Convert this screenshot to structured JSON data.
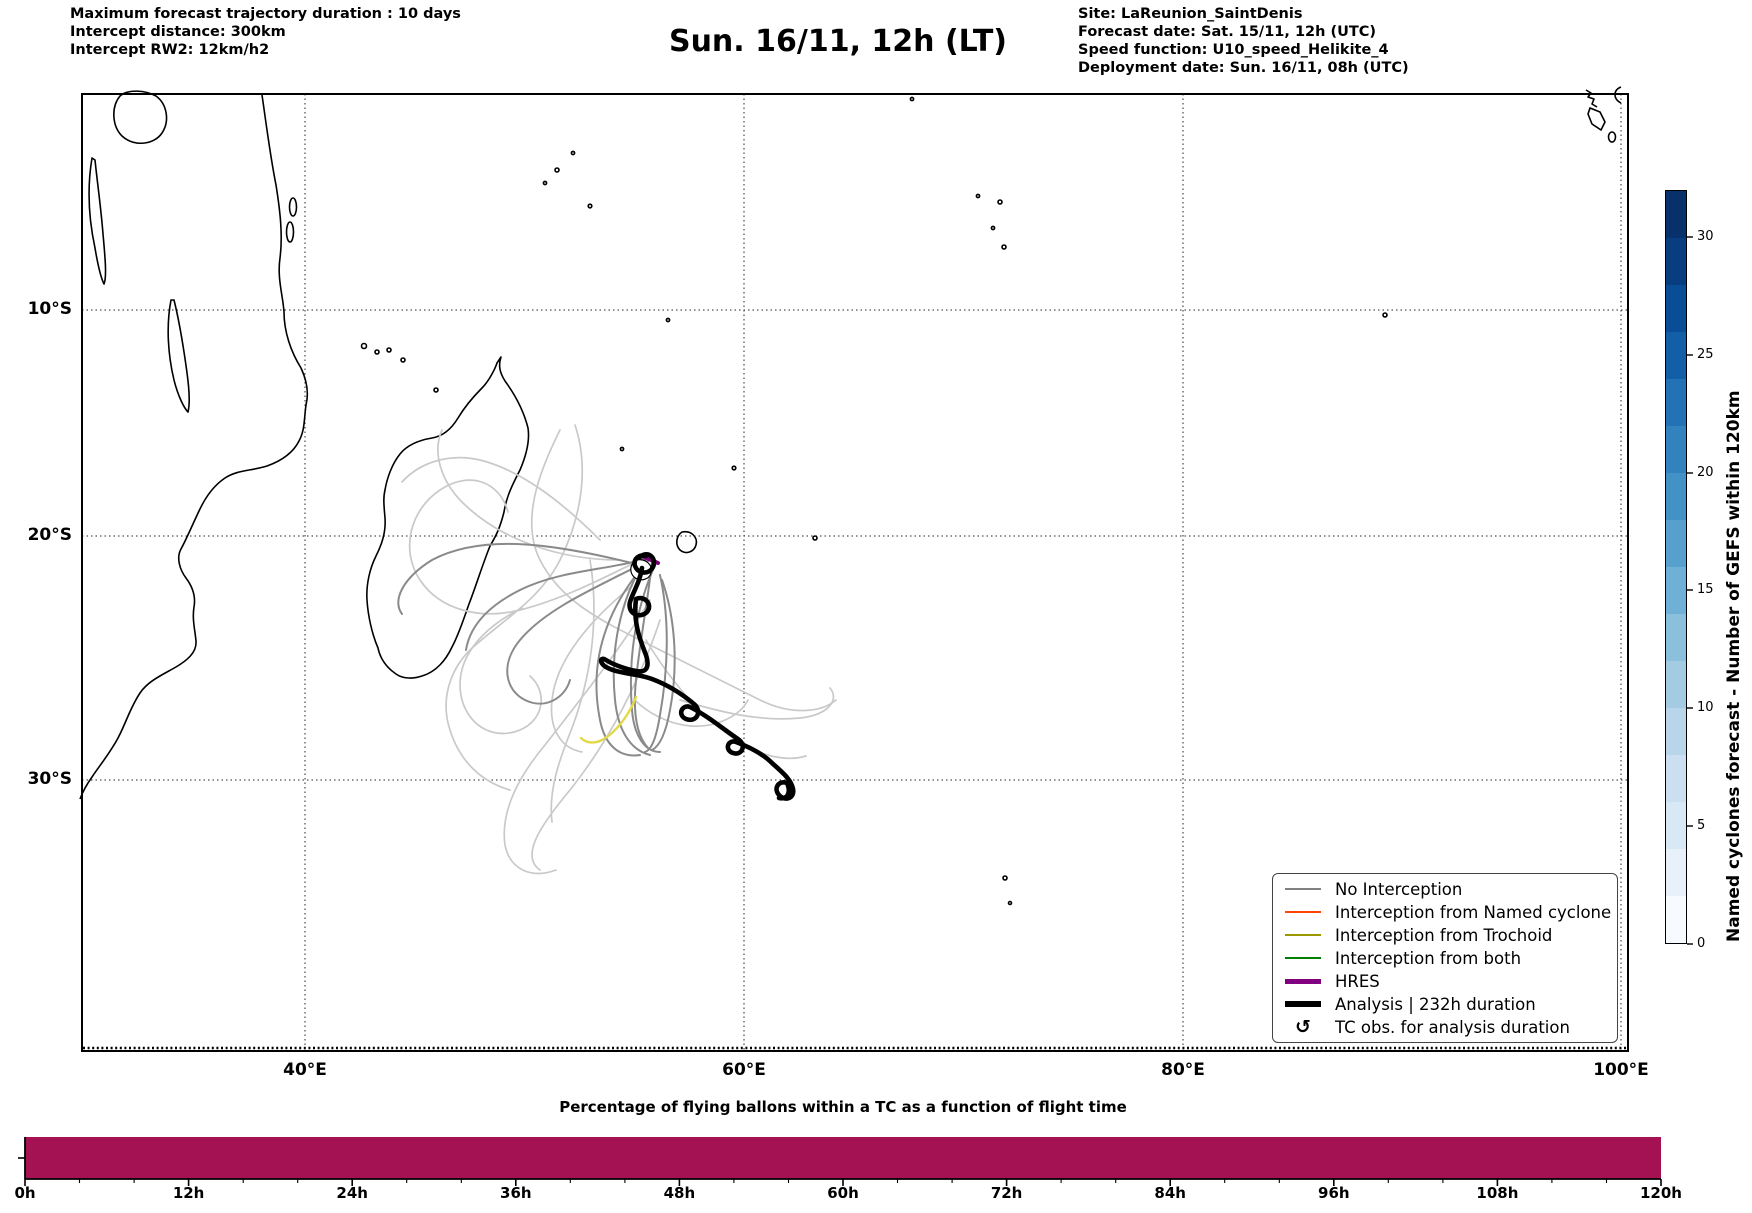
{
  "header": {
    "left": {
      "line1": "Maximum forecast trajectory duration : 10 days",
      "line2": "Intercept distance: 300km",
      "line3": "Intercept RW2: 12km/h2"
    },
    "title": "Sun. 16/11, 12h (LT)",
    "right": {
      "line1": "Site: LaReunion_SaintDenis",
      "line2": "Forecast date: Sat. 15/11, 12h (UTC)",
      "line3": "Speed function: U10_speed_Helikite_4",
      "line4": "Deployment date: Sun. 16/11, 08h (UTC)"
    }
  },
  "map": {
    "y_ticks": [
      "10°S",
      "20°S",
      "30°S"
    ],
    "x_ticks": [
      "40°E",
      "60°E",
      "80°E",
      "100°E"
    ],
    "legend": {
      "items": [
        {
          "label": "No Interception",
          "color": "#808080",
          "lw": 2
        },
        {
          "label": "Interception from Named cyclone",
          "color": "#ff4500",
          "lw": 2
        },
        {
          "label": "Interception from Trochoid",
          "color": "#9a9a00",
          "lw": 2
        },
        {
          "label": "Interception from both",
          "color": "#008000",
          "lw": 2
        },
        {
          "label": "HRES",
          "color": "#800080",
          "lw": 5
        },
        {
          "label": "Analysis | 232h duration",
          "color": "#000000",
          "lw": 6
        },
        {
          "label": "TC obs. for analysis duration",
          "marker": "↺"
        }
      ]
    }
  },
  "colorbar": {
    "label": "Named cyclones forecast - Number of GEFS within 120km",
    "ticks": [
      "0",
      "5",
      "10",
      "15",
      "20",
      "25",
      "30"
    ],
    "vmin": 0,
    "vmax": 32,
    "colors_bottom_to_top": [
      "#f7fbff",
      "#e8f1fa",
      "#d9e8f5",
      "#cbdff1",
      "#b9d5ea",
      "#a3cce3",
      "#8bc0dd",
      "#6fb0d7",
      "#57a0ce",
      "#4292c6",
      "#3282be",
      "#2272b5",
      "#135fa7",
      "#084d96",
      "#083d7f",
      "#08306b"
    ]
  },
  "bottom_chart": {
    "title": "Percentage of flying ballons within a TC as a function of flight time",
    "x_ticks": [
      "0h",
      "12h",
      "24h",
      "36h",
      "48h",
      "60h",
      "72h",
      "84h",
      "96h",
      "108h",
      "120h"
    ],
    "bar_color": "#a41254"
  },
  "chart_data": [
    {
      "type": "line",
      "title": "Sun. 16/11, 12h (LT)",
      "description": "Map of balloon forecast trajectories over the southwest Indian Ocean launched from La Réunion Saint-Denis",
      "lon_range_deg_E": [
        30,
        100
      ],
      "lat_range_deg_S": [
        0,
        41
      ],
      "gridlines": {
        "lat_deg_S": [
          10,
          20,
          30
        ],
        "lon_deg_E": [
          40,
          60,
          80,
          100
        ]
      },
      "grid": true,
      "legend_position": "lower right",
      "series": [
        {
          "name": "No Interception",
          "color": "#808080",
          "style": "thin gray",
          "count_approx": 25,
          "extent": "spaghetti cluster 44-63°E, 16-31°S, overlapping eastern Madagascar and south of La Réunion"
        },
        {
          "name": "Interception from Named cyclone",
          "color": "#ff4500",
          "count_approx": 0,
          "extent": "none visible on map"
        },
        {
          "name": "Interception from Trochoid",
          "color": "#9a9a00",
          "count_approx": 1,
          "extent": "short yellow arc near 55-56°E, 26.5-27.5°S"
        },
        {
          "name": "Interception from both",
          "color": "#008000",
          "count_approx": 0,
          "extent": "none visible on map"
        },
        {
          "name": "HRES",
          "color": "#800080",
          "count_approx": 1,
          "extent": "very short purple segment at track start near La Réunion (55.5°E, 21°S)"
        },
        {
          "name": "Analysis | 232h duration",
          "color": "#000000",
          "style": "thick black with loops",
          "count_approx": 1,
          "extent": "looping track from La Réunion (55.5°E, 21°S) southeastward to about 59°E, 27°S"
        }
      ]
    },
    {
      "type": "bar",
      "title": "Percentage of flying ballons within a TC as a function of flight time",
      "x": [
        0,
        12,
        24,
        36,
        48,
        60,
        72,
        84,
        96,
        108,
        120
      ],
      "x_unit": "h",
      "series": [
        {
          "name": "Percentage of flying balloons within a TC",
          "values": [
            100,
            100,
            100,
            100,
            100,
            100,
            100,
            100,
            100,
            100,
            100
          ]
        }
      ],
      "ylim": [
        0,
        100
      ],
      "bar_color": "#a41254",
      "note": "single continuous full-height bar spanning 0h to 120h"
    },
    {
      "type": "heatmap",
      "title": "Named cyclones forecast - Number of GEFS within 120km",
      "colorbar_range": [
        0,
        32
      ],
      "colorbar_ticks": [
        0,
        5,
        10,
        15,
        20,
        25,
        30
      ],
      "colormap": "Blues (discrete, 16 levels)"
    }
  ]
}
